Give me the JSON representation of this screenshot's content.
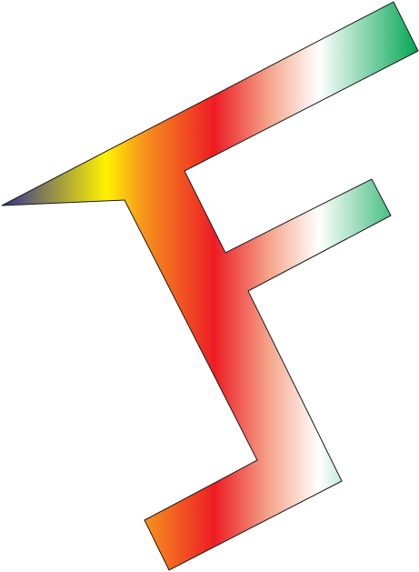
{
  "figure": {
    "background": "#ffffff",
    "outline_color": "#1a1a1a",
    "gradient_stops": [
      {
        "color": "#2e3192"
      },
      {
        "color": "#fff200"
      },
      {
        "color": "#f7941d"
      },
      {
        "color": "#ed1c24"
      },
      {
        "color": "#f4a48a"
      },
      {
        "color": "#ffffff"
      },
      {
        "color": "#00a651"
      }
    ]
  }
}
